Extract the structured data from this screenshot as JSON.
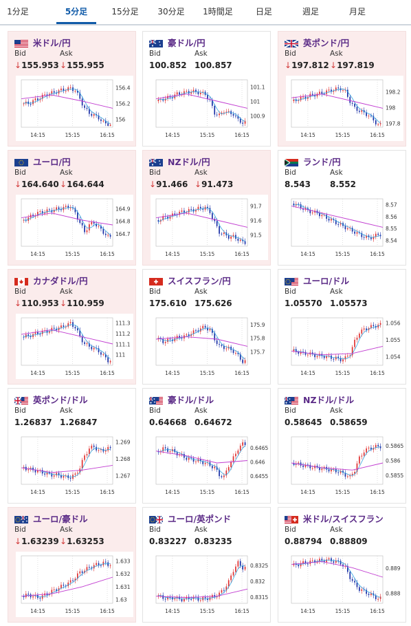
{
  "tabs": [
    {
      "label": "1分足",
      "active": false
    },
    {
      "label": "5分足",
      "active": true
    },
    {
      "label": "15分足",
      "active": false
    },
    {
      "label": "30分足",
      "active": false
    },
    {
      "label": "1時間足",
      "active": false
    },
    {
      "label": "日足",
      "active": false
    },
    {
      "label": "週足",
      "active": false
    },
    {
      "label": "月足",
      "active": false
    }
  ],
  "labels": {
    "bid": "Bid",
    "ask": "Ask"
  },
  "colors": {
    "up": "#e03030",
    "down": "#1a2fa6",
    "ma_short": "#35a6e0",
    "ma_long": "#c03ad0",
    "name": "#5b2b87",
    "pink": "#fbecec",
    "down_arrow": "#d23a3a"
  },
  "pairs": [
    {
      "name": "米ドル/円",
      "flag": "us",
      "bid": "155.953",
      "ask": "155.955",
      "bid_down": true,
      "ask_down": true,
      "pink": true,
      "chart_data": {
        "type": "candlestick",
        "x_ticks": [
          "14:15",
          "15:15",
          "16:15"
        ],
        "y_ticks": [
          "156.4",
          "156.2",
          "156"
        ],
        "ylim": [
          155.9,
          156.5
        ],
        "profile": [
          0.5,
          0.5,
          0.55,
          0.6,
          0.65,
          0.7,
          0.72,
          0.75,
          0.78,
          0.8,
          0.82,
          0.78,
          0.6,
          0.4,
          0.3,
          0.25,
          0.2,
          0.1,
          0.05
        ],
        "ma_long": [
          0.6,
          0.68,
          0.55,
          0.4
        ]
      }
    },
    {
      "name": "豪ドル/円",
      "flag": "au",
      "bid": "100.852",
      "ask": "100.857",
      "bid_down": false,
      "ask_down": false,
      "pink": false,
      "chart_data": {
        "type": "candlestick",
        "x_ticks": [
          "14:15",
          "15:15",
          "16:15"
        ],
        "y_ticks": [
          "101.1",
          "101",
          "100.9"
        ],
        "ylim": [
          100.82,
          101.15
        ],
        "profile": [
          0.55,
          0.6,
          0.62,
          0.65,
          0.7,
          0.72,
          0.74,
          0.75,
          0.75,
          0.72,
          0.7,
          0.55,
          0.3,
          0.25,
          0.35,
          0.3,
          0.28,
          0.15,
          0.1
        ],
        "ma_long": [
          0.6,
          0.7,
          0.55,
          0.4
        ]
      }
    },
    {
      "name": "英ポンド/円",
      "flag": "uk",
      "bid": "197.812",
      "ask": "197.819",
      "bid_down": true,
      "ask_down": true,
      "pink": true,
      "chart_data": {
        "type": "candlestick",
        "x_ticks": [
          "14:15",
          "15:15",
          "16:15"
        ],
        "y_ticks": [
          "198.2",
          "198",
          "197.8"
        ],
        "ylim": [
          197.75,
          198.35
        ],
        "profile": [
          0.55,
          0.6,
          0.62,
          0.65,
          0.68,
          0.7,
          0.72,
          0.75,
          0.78,
          0.8,
          0.82,
          0.75,
          0.55,
          0.4,
          0.35,
          0.3,
          0.25,
          0.15,
          0.05
        ],
        "ma_long": [
          0.62,
          0.7,
          0.55,
          0.4
        ]
      }
    },
    {
      "name": "ユーロ/円",
      "flag": "eu",
      "bid": "164.640",
      "ask": "164.644",
      "bid_down": true,
      "ask_down": true,
      "pink": true,
      "chart_data": {
        "type": "candlestick",
        "x_ticks": [
          "14:15",
          "15:15",
          "16:15"
        ],
        "y_ticks": [
          "164.9",
          "164.8",
          "164.7"
        ],
        "ylim": [
          164.6,
          164.98
        ],
        "profile": [
          0.55,
          0.6,
          0.65,
          0.7,
          0.72,
          0.74,
          0.76,
          0.78,
          0.8,
          0.82,
          0.84,
          0.7,
          0.5,
          0.3,
          0.45,
          0.5,
          0.4,
          0.3,
          0.2
        ],
        "ma_long": [
          0.6,
          0.7,
          0.55,
          0.45
        ]
      }
    },
    {
      "name": "NZドル/円",
      "flag": "nz",
      "bid": "91.466",
      "ask": "91.473",
      "bid_down": true,
      "ask_down": true,
      "pink": true,
      "chart_data": {
        "type": "candlestick",
        "x_ticks": [
          "14:15",
          "15:15",
          "16:15"
        ],
        "y_ticks": [
          "91.7",
          "91.6",
          "91.5"
        ],
        "ylim": [
          91.42,
          91.75
        ],
        "profile": [
          0.55,
          0.6,
          0.62,
          0.65,
          0.7,
          0.72,
          0.74,
          0.76,
          0.78,
          0.8,
          0.82,
          0.72,
          0.5,
          0.3,
          0.25,
          0.2,
          0.2,
          0.15,
          0.08
        ],
        "ma_long": [
          0.6,
          0.7,
          0.55,
          0.4
        ]
      }
    },
    {
      "name": "ランド/円",
      "flag": "za",
      "bid": "8.543",
      "ask": "8.552",
      "bid_down": false,
      "ask_down": false,
      "pink": false,
      "chart_data": {
        "type": "candlestick",
        "x_ticks": [
          "14:15",
          "15:15",
          "16:15"
        ],
        "y_ticks": [
          "8.57",
          "8.56",
          "8.55",
          "8.54"
        ],
        "ylim": [
          8.535,
          8.575
        ],
        "profile": [
          0.9,
          0.85,
          0.8,
          0.75,
          0.72,
          0.7,
          0.65,
          0.6,
          0.55,
          0.5,
          0.45,
          0.4,
          0.35,
          0.3,
          0.25,
          0.2,
          0.18,
          0.2,
          0.25
        ],
        "ma_long": [
          0.85,
          0.7,
          0.55,
          0.4
        ]
      }
    },
    {
      "name": "カナダドル/円",
      "flag": "ca",
      "bid": "110.953",
      "ask": "110.959",
      "bid_down": true,
      "ask_down": true,
      "pink": true,
      "chart_data": {
        "type": "candlestick",
        "x_ticks": [
          "14:15",
          "15:15",
          "16:15"
        ],
        "y_ticks": [
          "111.3",
          "111.2",
          "111.1",
          "111"
        ],
        "ylim": [
          110.9,
          111.35
        ],
        "profile": [
          0.6,
          0.62,
          0.65,
          0.68,
          0.7,
          0.72,
          0.75,
          0.78,
          0.8,
          0.85,
          0.88,
          0.8,
          0.6,
          0.45,
          0.4,
          0.35,
          0.3,
          0.2,
          0.1
        ],
        "ma_long": [
          0.65,
          0.75,
          0.6,
          0.45
        ]
      }
    },
    {
      "name": "スイスフラン/円",
      "flag": "ch",
      "bid": "175.610",
      "ask": "175.626",
      "bid_down": false,
      "ask_down": false,
      "pink": false,
      "chart_data": {
        "type": "candlestick",
        "x_ticks": [
          "14:15",
          "15:15",
          "16:15"
        ],
        "y_ticks": [
          "175.9",
          "175.8",
          "175.7"
        ],
        "ylim": [
          175.6,
          175.95
        ],
        "profile": [
          0.55,
          0.5,
          0.52,
          0.55,
          0.58,
          0.6,
          0.62,
          0.68,
          0.72,
          0.78,
          0.8,
          0.75,
          0.55,
          0.4,
          0.38,
          0.35,
          0.3,
          0.2,
          0.08
        ],
        "ma_long": [
          0.55,
          0.6,
          0.55,
          0.4
        ]
      }
    },
    {
      "name": "ユーロ/ドル",
      "flag": "euus",
      "bid": "1.05570",
      "ask": "1.05573",
      "bid_down": false,
      "ask_down": false,
      "pink": false,
      "chart_data": {
        "type": "candlestick",
        "x_ticks": [
          "14:15",
          "15:15",
          "16:15"
        ],
        "y_ticks": [
          "1.056",
          "1.055",
          "1.054"
        ],
        "ylim": [
          1.0535,
          1.0563
        ],
        "profile": [
          0.3,
          0.28,
          0.25,
          0.25,
          0.22,
          0.2,
          0.2,
          0.18,
          0.16,
          0.15,
          0.12,
          0.15,
          0.25,
          0.5,
          0.7,
          0.75,
          0.8,
          0.82,
          0.85
        ],
        "ma_long": [
          0.3,
          0.22,
          0.25,
          0.4
        ]
      }
    },
    {
      "name": "英ポンド/ドル",
      "flag": "ukus",
      "bid": "1.26837",
      "ask": "1.26847",
      "bid_down": false,
      "ask_down": false,
      "pink": false,
      "chart_data": {
        "type": "candlestick",
        "x_ticks": [
          "14:15",
          "15:15",
          "16:15"
        ],
        "y_ticks": [
          "1.269",
          "1.268",
          "1.267"
        ],
        "ylim": [
          1.2665,
          1.2693
        ],
        "profile": [
          0.35,
          0.32,
          0.3,
          0.28,
          0.25,
          0.22,
          0.2,
          0.2,
          0.18,
          0.15,
          0.15,
          0.2,
          0.35,
          0.6,
          0.75,
          0.8,
          0.7,
          0.72,
          0.75
        ],
        "ma_long": [
          0.35,
          0.25,
          0.3,
          0.4
        ]
      }
    },
    {
      "name": "豪ドル/ドル",
      "flag": "auus",
      "bid": "0.64668",
      "ask": "0.64672",
      "bid_down": false,
      "ask_down": false,
      "pink": false,
      "chart_data": {
        "type": "candlestick",
        "x_ticks": [
          "14:15",
          "15:15",
          "16:15"
        ],
        "y_ticks": [
          "0.6465",
          "0.646",
          "0.6455"
        ],
        "ylim": [
          0.6452,
          0.6469
        ],
        "profile": [
          0.7,
          0.75,
          0.72,
          0.7,
          0.65,
          0.6,
          0.55,
          0.52,
          0.5,
          0.48,
          0.45,
          0.4,
          0.35,
          0.2,
          0.15,
          0.4,
          0.55,
          0.75,
          0.85
        ],
        "ma_long": [
          0.7,
          0.6,
          0.45,
          0.5
        ]
      }
    },
    {
      "name": "NZドル/ドル",
      "flag": "nzus",
      "bid": "0.58645",
      "ask": "0.58659",
      "bid_down": false,
      "ask_down": false,
      "pink": false,
      "chart_data": {
        "type": "candlestick",
        "x_ticks": [
          "14:15",
          "15:15",
          "16:15"
        ],
        "y_ticks": [
          "0.5865",
          "0.586",
          "0.5855"
        ],
        "ylim": [
          0.5852,
          0.5868
        ],
        "profile": [
          0.45,
          0.42,
          0.4,
          0.38,
          0.36,
          0.35,
          0.33,
          0.32,
          0.3,
          0.28,
          0.25,
          0.2,
          0.15,
          0.3,
          0.55,
          0.7,
          0.75,
          0.78,
          0.8
        ],
        "ma_long": [
          0.45,
          0.35,
          0.3,
          0.45
        ]
      }
    },
    {
      "name": "ユーロ/豪ドル",
      "flag": "euau",
      "bid": "1.63239",
      "ask": "1.63253",
      "bid_down": true,
      "ask_down": true,
      "pink": true,
      "chart_data": {
        "type": "candlestick",
        "x_ticks": [
          "14:15",
          "15:15",
          "16:15"
        ],
        "y_ticks": [
          "1.633",
          "1.632",
          "1.631",
          "1.63"
        ],
        "ylim": [
          1.6297,
          1.6334
        ],
        "profile": [
          0.15,
          0.18,
          0.15,
          0.12,
          0.15,
          0.2,
          0.25,
          0.3,
          0.35,
          0.4,
          0.45,
          0.55,
          0.65,
          0.7,
          0.75,
          0.8,
          0.82,
          0.85,
          0.82
        ],
        "ma_long": [
          0.15,
          0.2,
          0.35,
          0.55
        ]
      }
    },
    {
      "name": "ユーロ/英ポンド",
      "flag": "euuk",
      "bid": "0.83227",
      "ask": "0.83235",
      "bid_down": false,
      "ask_down": false,
      "pink": false,
      "chart_data": {
        "type": "candlestick",
        "x_ticks": [
          "14:15",
          "15:15",
          "16:15"
        ],
        "y_ticks": [
          "0.8325",
          "0.832",
          "0.8315"
        ],
        "ylim": [
          0.8313,
          0.8328
        ],
        "profile": [
          0.15,
          0.12,
          0.1,
          0.12,
          0.1,
          0.08,
          0.1,
          0.12,
          0.1,
          0.08,
          0.1,
          0.12,
          0.15,
          0.2,
          0.3,
          0.45,
          0.7,
          0.85,
          0.75
        ],
        "ma_long": [
          0.15,
          0.12,
          0.15,
          0.3
        ]
      }
    },
    {
      "name": "米ドル/スイスフラン",
      "flag": "usch",
      "bid": "0.88794",
      "ask": "0.88809",
      "bid_down": false,
      "ask_down": false,
      "pink": false,
      "chart_data": {
        "type": "candlestick",
        "x_ticks": [
          "14:15",
          "15:15",
          "16:15"
        ],
        "y_ticks": [
          "0.889",
          "0.888"
        ],
        "ylim": [
          0.8876,
          0.8895
        ],
        "profile": [
          0.8,
          0.82,
          0.85,
          0.86,
          0.88,
          0.9,
          0.9,
          0.92,
          0.9,
          0.88,
          0.85,
          0.75,
          0.55,
          0.4,
          0.3,
          0.25,
          0.2,
          0.15,
          0.1
        ],
        "ma_long": [
          0.82,
          0.88,
          0.75,
          0.55
        ]
      }
    }
  ]
}
